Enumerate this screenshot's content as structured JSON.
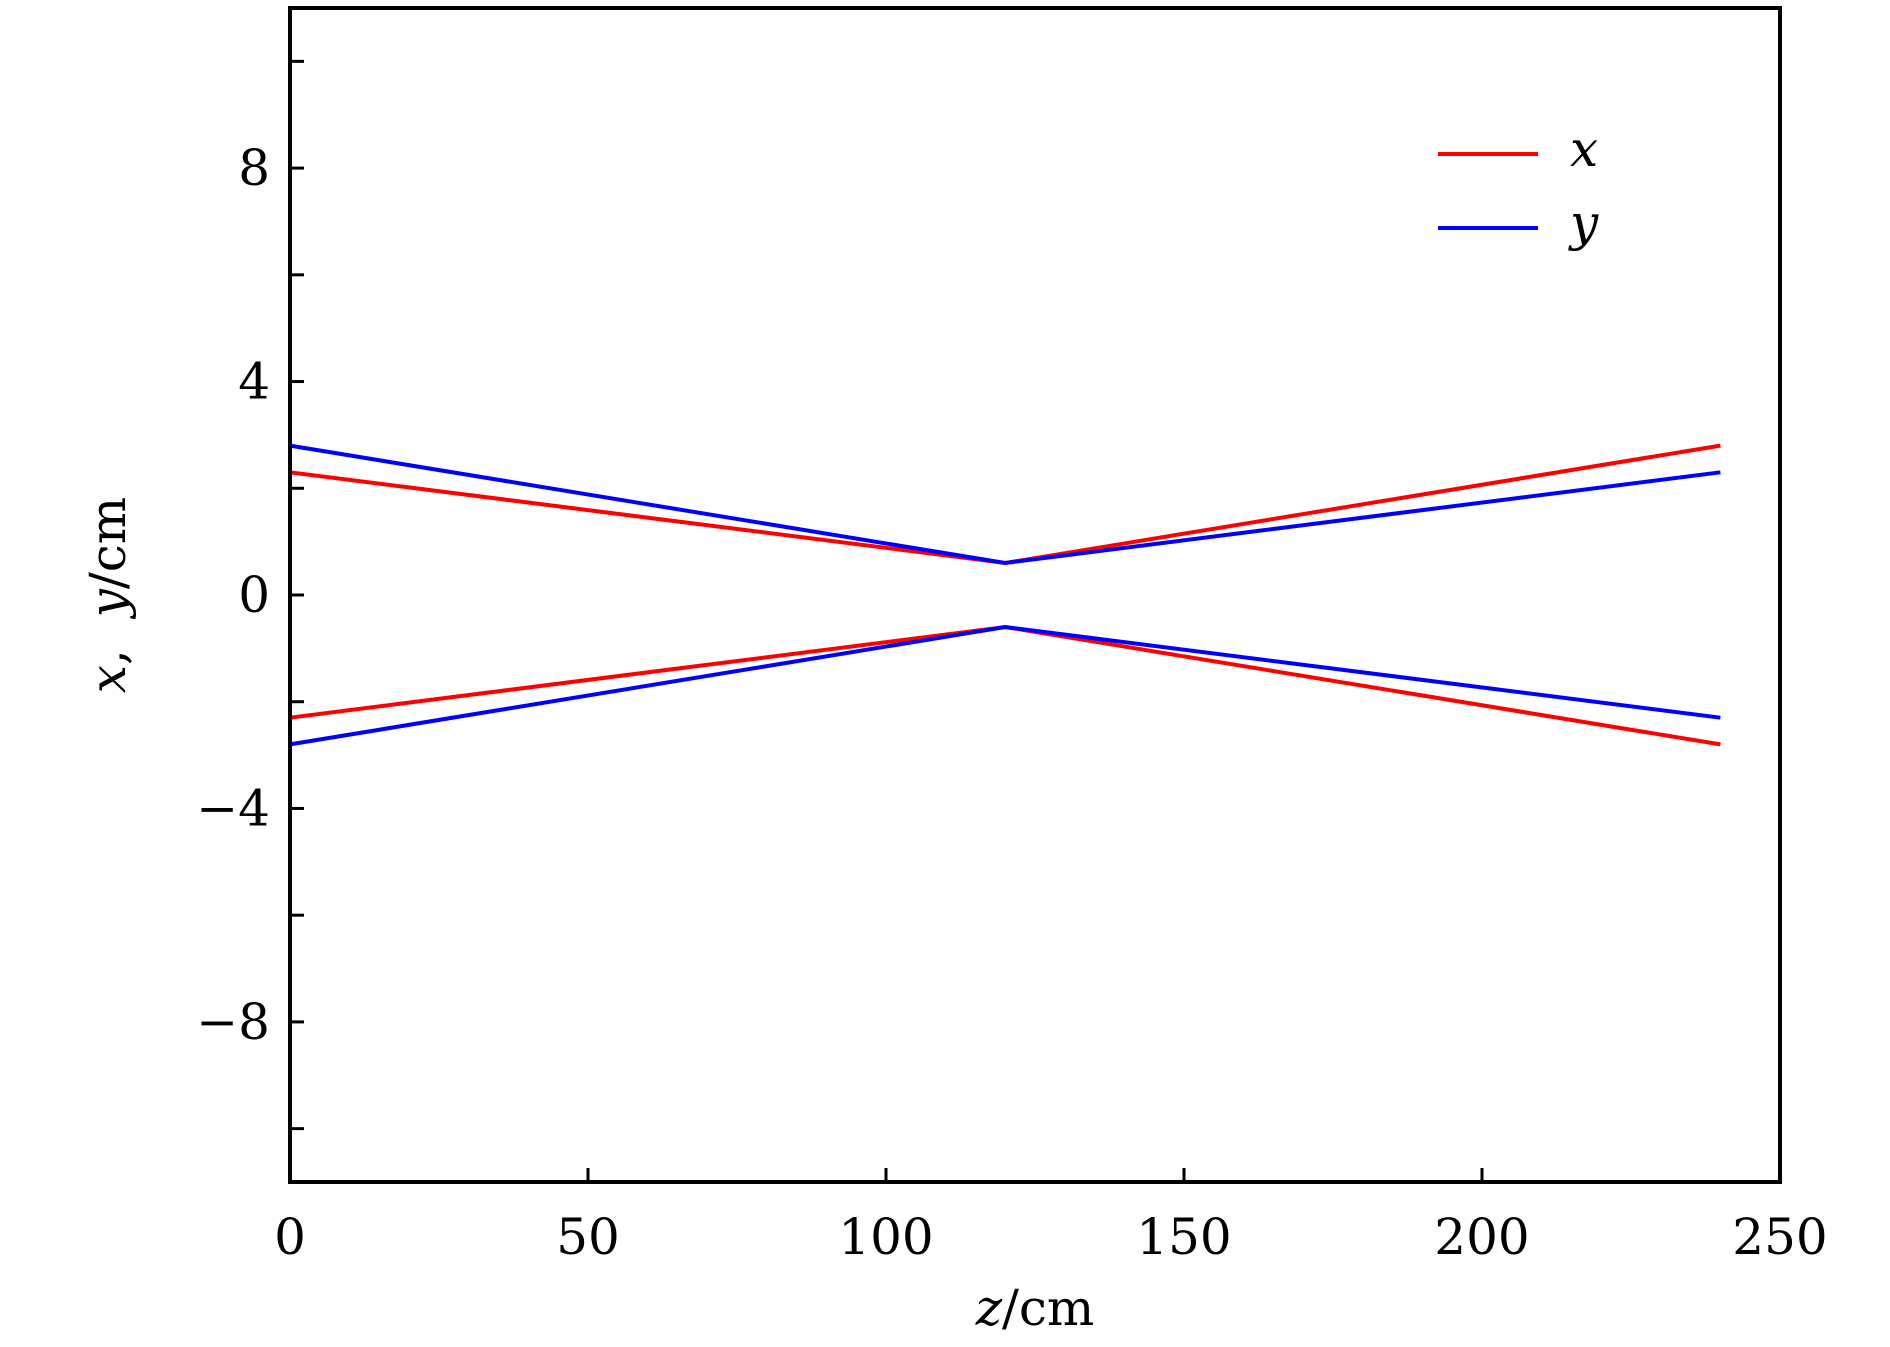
{
  "chart_data": {
    "type": "line",
    "xlabel": "z/cm",
    "ylabel": "x, y/cm",
    "xlim": [
      0,
      250
    ],
    "ylim": [
      -11,
      11
    ],
    "xticks": [
      0,
      50,
      100,
      150,
      200,
      250
    ],
    "yticks_labeled": [
      -8,
      -4,
      0,
      4,
      8
    ],
    "yticks_minor": [
      -10,
      -6,
      -2,
      2,
      6,
      10
    ],
    "xtick_labels": [
      "0",
      "50",
      "100",
      "150",
      "200",
      "250"
    ],
    "ytick_labels": [
      "−8",
      "−4",
      "0",
      "4",
      "8"
    ],
    "grid": false,
    "legend_position": "top-right",
    "series": [
      {
        "name": "x",
        "color": "#ff0000",
        "segments": [
          {
            "x": [
              0,
              120,
              240
            ],
            "y": [
              2.3,
              0.6,
              2.8
            ]
          },
          {
            "x": [
              0,
              120,
              240
            ],
            "y": [
              -2.3,
              -0.6,
              -2.8
            ]
          }
        ]
      },
      {
        "name": "y",
        "color": "#0000ff",
        "segments": [
          {
            "x": [
              0,
              120,
              240
            ],
            "y": [
              2.8,
              0.6,
              2.3
            ]
          },
          {
            "x": [
              0,
              120,
              240
            ],
            "y": [
              -2.8,
              -0.6,
              -2.3
            ]
          }
        ]
      }
    ]
  }
}
